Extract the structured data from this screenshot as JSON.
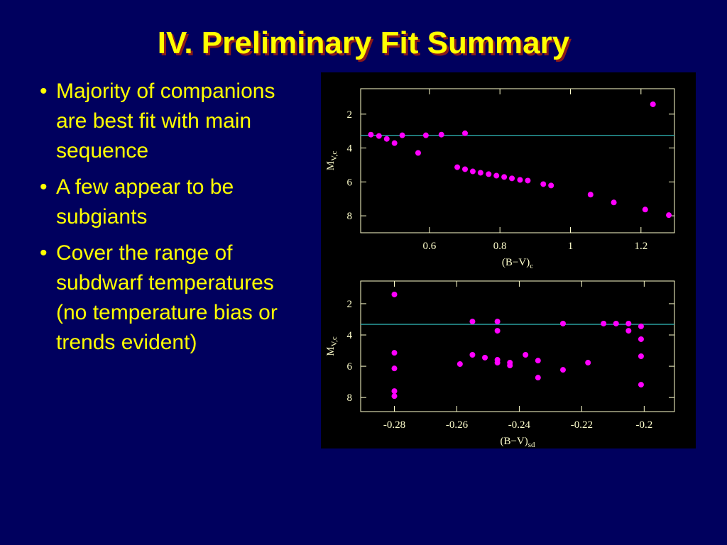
{
  "title": "IV. Preliminary Fit Summary",
  "bullets": [
    "Majority of companions are best fit with main sequence",
    "A few appear to be subgiants",
    "Cover the range of subdwarf temperatures (no temperature bias or trends evident)"
  ],
  "chart_data": [
    {
      "type": "scatter",
      "xlabel": "(B−V)",
      "xlabel_sub": "c",
      "ylabel": "M",
      "ylabel_sub": "V,c",
      "xlim": [
        0.405,
        1.295
      ],
      "ylim": [
        9,
        0.5
      ],
      "xticks": [
        0.6,
        0.8,
        1,
        1.2
      ],
      "yticks": [
        2,
        4,
        6,
        8
      ],
      "color": "#ff00ff",
      "hline": 3.25,
      "hline_color": "#2aa6a6",
      "x": [
        0.434,
        0.457,
        0.479,
        0.501,
        0.523,
        0.568,
        0.59,
        0.634,
        0.701,
        0.679,
        0.701,
        0.723,
        0.745,
        0.768,
        0.79,
        0.812,
        0.834,
        0.857,
        0.879,
        0.923,
        0.945,
        1.057,
        1.123,
        1.212,
        1.234,
        1.279
      ],
      "values": [
        3.21,
        3.29,
        3.46,
        3.71,
        3.25,
        4.29,
        3.25,
        3.21,
        3.13,
        5.13,
        5.25,
        5.38,
        5.46,
        5.54,
        5.63,
        5.71,
        5.79,
        5.88,
        5.92,
        6.13,
        6.21,
        6.75,
        7.21,
        7.63,
        1.42,
        7.96
      ]
    },
    {
      "type": "scatter",
      "xlabel": "(B−V)",
      "xlabel_sub": "sd",
      "ylabel": "M",
      "ylabel_sub": "V,c",
      "xlim": [
        -0.2908,
        -0.1903
      ],
      "ylim": [
        8.9,
        0.55
      ],
      "xticks": [
        -0.28,
        -0.26,
        -0.24,
        -0.22,
        -0.2
      ],
      "yticks": [
        2,
        4,
        6,
        8
      ],
      "color": "#ff00ff",
      "hline": 3.32,
      "hline_color": "#2aa6a6",
      "x": [
        -0.28,
        -0.28,
        -0.28,
        -0.28,
        -0.28,
        -0.259,
        -0.255,
        -0.255,
        -0.251,
        -0.247,
        -0.247,
        -0.247,
        -0.247,
        -0.243,
        -0.243,
        -0.238,
        -0.234,
        -0.234,
        -0.226,
        -0.226,
        -0.218,
        -0.213,
        -0.209,
        -0.205,
        -0.205,
        -0.201,
        -0.201,
        -0.201,
        -0.201
      ],
      "values": [
        1.41,
        5.14,
        6.14,
        7.59,
        7.91,
        5.86,
        3.14,
        5.27,
        5.45,
        3.14,
        3.73,
        5.59,
        5.77,
        5.77,
        5.95,
        5.27,
        5.64,
        6.73,
        3.27,
        6.23,
        5.77,
        3.27,
        3.27,
        3.27,
        3.73,
        3.45,
        4.27,
        5.36,
        7.18
      ]
    }
  ]
}
